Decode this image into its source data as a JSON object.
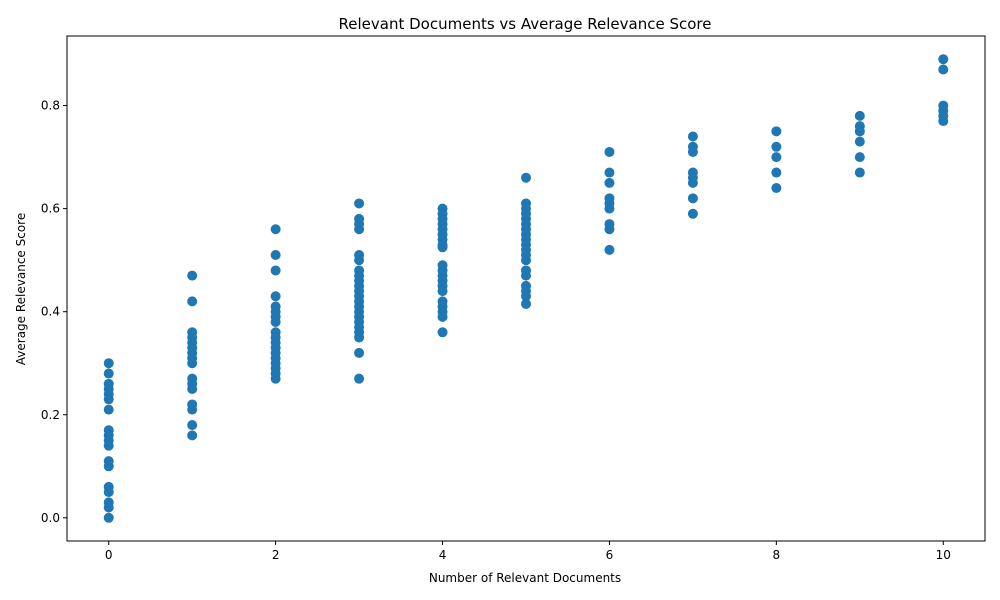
{
  "chart_data": {
    "type": "scatter",
    "title": "Relevant Documents vs Average Relevance Score",
    "xlabel": "Number of Relevant Documents",
    "ylabel": "Average Relevance Score",
    "xlim": [
      -0.5,
      10.5
    ],
    "ylim": [
      -0.045,
      0.935
    ],
    "xticks": [
      0,
      2,
      4,
      6,
      8,
      10
    ],
    "xtick_labels": [
      "0",
      "2",
      "4",
      "6",
      "8",
      "10"
    ],
    "yticks": [
      0.0,
      0.2,
      0.4,
      0.6,
      0.8
    ],
    "ytick_labels": [
      "0.0",
      "0.2",
      "0.4",
      "0.6",
      "0.8"
    ],
    "grid": false,
    "marker_color": "#1f77b4",
    "points": [
      [
        0,
        0.3
      ],
      [
        0,
        0.28
      ],
      [
        0,
        0.26
      ],
      [
        0,
        0.25
      ],
      [
        0,
        0.24
      ],
      [
        0,
        0.23
      ],
      [
        0,
        0.21
      ],
      [
        0,
        0.17
      ],
      [
        0,
        0.16
      ],
      [
        0,
        0.15
      ],
      [
        0,
        0.14
      ],
      [
        0,
        0.11
      ],
      [
        0,
        0.1
      ],
      [
        0,
        0.06
      ],
      [
        0,
        0.05
      ],
      [
        0,
        0.03
      ],
      [
        0,
        0.02
      ],
      [
        0,
        0.0
      ],
      [
        1,
        0.47
      ],
      [
        1,
        0.42
      ],
      [
        1,
        0.36
      ],
      [
        1,
        0.35
      ],
      [
        1,
        0.34
      ],
      [
        1,
        0.33
      ],
      [
        1,
        0.32
      ],
      [
        1,
        0.31
      ],
      [
        1,
        0.3
      ],
      [
        1,
        0.27
      ],
      [
        1,
        0.26
      ],
      [
        1,
        0.25
      ],
      [
        1,
        0.22
      ],
      [
        1,
        0.21
      ],
      [
        1,
        0.18
      ],
      [
        1,
        0.16
      ],
      [
        2,
        0.56
      ],
      [
        2,
        0.51
      ],
      [
        2,
        0.48
      ],
      [
        2,
        0.43
      ],
      [
        2,
        0.41
      ],
      [
        2,
        0.4
      ],
      [
        2,
        0.39
      ],
      [
        2,
        0.38
      ],
      [
        2,
        0.36
      ],
      [
        2,
        0.35
      ],
      [
        2,
        0.34
      ],
      [
        2,
        0.33
      ],
      [
        2,
        0.32
      ],
      [
        2,
        0.31
      ],
      [
        2,
        0.3
      ],
      [
        2,
        0.29
      ],
      [
        2,
        0.28
      ],
      [
        2,
        0.27
      ],
      [
        3,
        0.61
      ],
      [
        3,
        0.58
      ],
      [
        3,
        0.57
      ],
      [
        3,
        0.56
      ],
      [
        3,
        0.51
      ],
      [
        3,
        0.5
      ],
      [
        3,
        0.48
      ],
      [
        3,
        0.47
      ],
      [
        3,
        0.46
      ],
      [
        3,
        0.45
      ],
      [
        3,
        0.44
      ],
      [
        3,
        0.43
      ],
      [
        3,
        0.42
      ],
      [
        3,
        0.41
      ],
      [
        3,
        0.4
      ],
      [
        3,
        0.39
      ],
      [
        3,
        0.38
      ],
      [
        3,
        0.37
      ],
      [
        3,
        0.36
      ],
      [
        3,
        0.35
      ],
      [
        3,
        0.32
      ],
      [
        3,
        0.27
      ],
      [
        4,
        0.6
      ],
      [
        4,
        0.59
      ],
      [
        4,
        0.58
      ],
      [
        4,
        0.57
      ],
      [
        4,
        0.56
      ],
      [
        4,
        0.55
      ],
      [
        4,
        0.54
      ],
      [
        4,
        0.53
      ],
      [
        4,
        0.525
      ],
      [
        4,
        0.49
      ],
      [
        4,
        0.48
      ],
      [
        4,
        0.47
      ],
      [
        4,
        0.46
      ],
      [
        4,
        0.45
      ],
      [
        4,
        0.44
      ],
      [
        4,
        0.42
      ],
      [
        4,
        0.41
      ],
      [
        4,
        0.4
      ],
      [
        4,
        0.39
      ],
      [
        4,
        0.36
      ],
      [
        5,
        0.66
      ],
      [
        5,
        0.61
      ],
      [
        5,
        0.6
      ],
      [
        5,
        0.59
      ],
      [
        5,
        0.58
      ],
      [
        5,
        0.57
      ],
      [
        5,
        0.56
      ],
      [
        5,
        0.55
      ],
      [
        5,
        0.54
      ],
      [
        5,
        0.53
      ],
      [
        5,
        0.52
      ],
      [
        5,
        0.51
      ],
      [
        5,
        0.5
      ],
      [
        5,
        0.48
      ],
      [
        5,
        0.47
      ],
      [
        5,
        0.45
      ],
      [
        5,
        0.44
      ],
      [
        5,
        0.43
      ],
      [
        5,
        0.415
      ],
      [
        6,
        0.71
      ],
      [
        6,
        0.67
      ],
      [
        6,
        0.65
      ],
      [
        6,
        0.62
      ],
      [
        6,
        0.61
      ],
      [
        6,
        0.6
      ],
      [
        6,
        0.57
      ],
      [
        6,
        0.56
      ],
      [
        6,
        0.52
      ],
      [
        7,
        0.74
      ],
      [
        7,
        0.72
      ],
      [
        7,
        0.71
      ],
      [
        7,
        0.67
      ],
      [
        7,
        0.66
      ],
      [
        7,
        0.65
      ],
      [
        7,
        0.62
      ],
      [
        7,
        0.59
      ],
      [
        8,
        0.75
      ],
      [
        8,
        0.72
      ],
      [
        8,
        0.7
      ],
      [
        8,
        0.67
      ],
      [
        8,
        0.64
      ],
      [
        9,
        0.78
      ],
      [
        9,
        0.76
      ],
      [
        9,
        0.75
      ],
      [
        9,
        0.73
      ],
      [
        9,
        0.7
      ],
      [
        9,
        0.67
      ],
      [
        10,
        0.89
      ],
      [
        10,
        0.87
      ],
      [
        10,
        0.8
      ],
      [
        10,
        0.79
      ],
      [
        10,
        0.78
      ],
      [
        10,
        0.77
      ]
    ]
  }
}
